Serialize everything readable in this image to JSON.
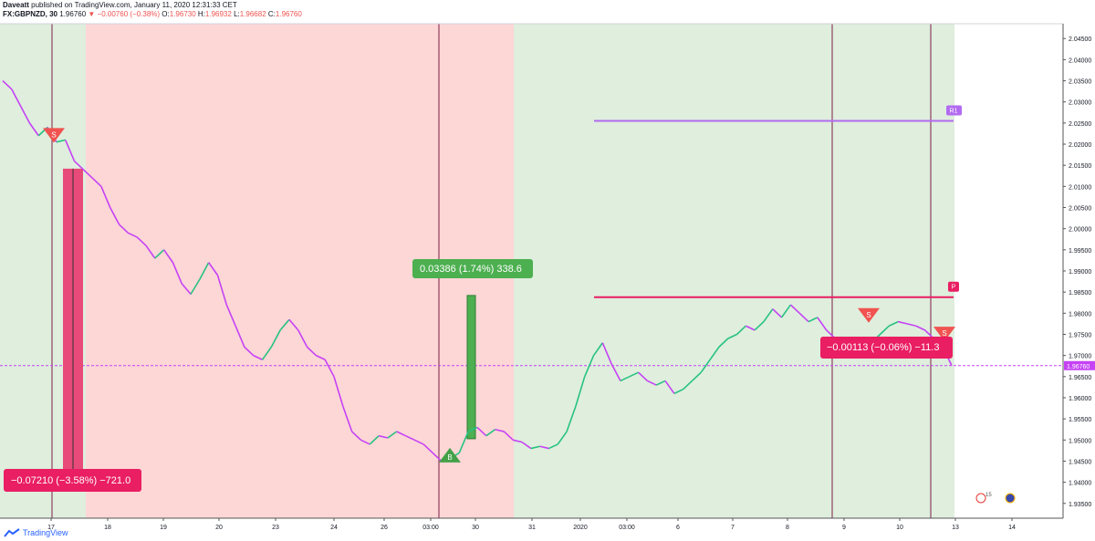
{
  "header": {
    "author": "Daveatt",
    "published": "published on TradingView.com, January 11, 2020 12:31:33 CET",
    "symbol": "FX:GBPNZD, 30",
    "last": "1.96760",
    "change": "−0.00760 (−0.38%)",
    "o_label": "O:",
    "o_value": "1.96730",
    "h_label": "H:",
    "h_value": "1.96932",
    "l_label": "L:",
    "l_value": "1.96682",
    "c_label": "C:",
    "c_value": "1.96760"
  },
  "footer": {
    "brand": "TradingView"
  },
  "colors": {
    "bull": "#26c281",
    "bear": "#c542f5",
    "bg_green": "#dfeedd",
    "bg_red": "#fdd6d6",
    "pivot": "#e91e63",
    "r1": "#b26bf0",
    "down_box": "#e84a7a",
    "up_box": "#4caf50"
  },
  "chart_data": {
    "type": "line",
    "title": "FX:GBPNZD, 30",
    "ylim": [
      1.9315,
      2.0485
    ],
    "y_ticks": [
      "2.04500",
      "2.04000",
      "2.03500",
      "2.03000",
      "2.02500",
      "2.02000",
      "2.01500",
      "2.01000",
      "2.00500",
      "2.00000",
      "1.99500",
      "1.99000",
      "1.98500",
      "1.98000",
      "1.97500",
      "1.97000",
      "1.96500",
      "1.96000",
      "1.95500",
      "1.95000",
      "1.94500",
      "1.94000",
      "1.93500"
    ],
    "x_ticks": [
      "17",
      "18",
      "19",
      "20",
      "23",
      "24",
      "26",
      "03:00",
      "30",
      "31",
      "2020",
      "03:00",
      "6",
      "7",
      "8",
      "9",
      "10",
      "13",
      "14"
    ],
    "series": [
      {
        "values": [
          2.035,
          2.033,
          2.029,
          2.025,
          2.022,
          2.024,
          2.0205,
          2.021,
          2.016,
          2.014,
          2.012,
          2.01,
          2.005,
          2.001,
          1.999,
          1.998,
          1.996,
          1.993,
          1.995,
          1.992,
          1.987,
          1.9845,
          1.988,
          1.992,
          1.989,
          1.982,
          1.977,
          1.972,
          1.97,
          1.969,
          1.972,
          1.976,
          1.9785,
          1.976,
          1.972,
          1.97,
          1.969,
          1.965,
          1.958,
          1.952,
          1.95,
          1.949,
          1.951,
          1.9505,
          1.952,
          1.951,
          1.95,
          1.949,
          1.947,
          1.945,
          1.9455,
          1.947,
          1.952,
          1.953,
          1.951,
          1.9525,
          1.952,
          1.95,
          1.9495,
          1.948,
          1.9485,
          1.948,
          1.949,
          1.952,
          1.958,
          1.965,
          1.97,
          1.973,
          1.968,
          1.964,
          1.965,
          1.966,
          1.964,
          1.963,
          1.964,
          1.961,
          1.962,
          1.964,
          1.966,
          1.969,
          1.972,
          1.974,
          1.975,
          1.977,
          1.976,
          1.978,
          1.981,
          1.979,
          1.982,
          1.98,
          1.978,
          1.979,
          1.976,
          1.974,
          1.973,
          1.972,
          1.971,
          1.973,
          1.975,
          1.977,
          1.978,
          1.9775,
          1.977,
          1.976,
          1.974,
          1.972,
          1.9676
        ]
      }
    ],
    "annotations": {
      "current_price": "1.96760",
      "pivot_label": "P",
      "r1_label": "R1",
      "sell_label": "S",
      "buy_label": "B",
      "measure_down": "−0.07210 (−3.58%) −721.0",
      "measure_up": "0.03386 (1.74%) 338.6",
      "measure_small": "−0.00113 (−0.06%) −11.3",
      "events": [
        "15"
      ]
    }
  }
}
